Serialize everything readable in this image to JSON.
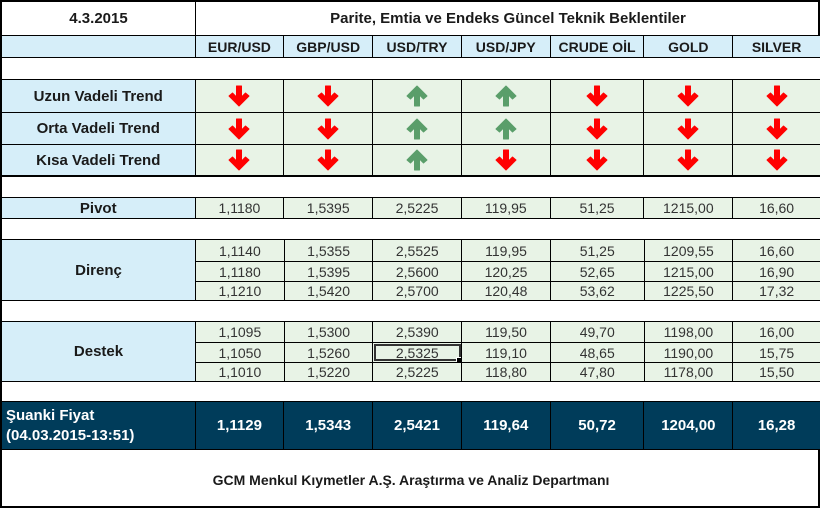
{
  "header": {
    "date": "4.3.2015",
    "title": "Parite, Emtia ve Endeks Güncel Teknik Beklentiler"
  },
  "columns": [
    "EUR/USD",
    "GBP/USD",
    "USD/TRY",
    "USD/JPY",
    "CRUDE OİL",
    "GOLD",
    "SILVER"
  ],
  "colors": {
    "header_bg": "#d6eef9",
    "value_bg": "#e8f3e6",
    "current_bg": "#003c5a",
    "arrow_down": "#ff0000",
    "arrow_up": "#5a9e6a"
  },
  "trends": [
    {
      "label": "Uzun Vadeli Trend",
      "directions": [
        "down",
        "down",
        "up",
        "up",
        "down",
        "down",
        "down"
      ]
    },
    {
      "label": "Orta Vadeli Trend",
      "directions": [
        "down",
        "down",
        "up",
        "up",
        "down",
        "down",
        "down"
      ]
    },
    {
      "label": "Kısa Vadeli Trend",
      "directions": [
        "down",
        "down",
        "up",
        "down",
        "down",
        "down",
        "down"
      ]
    }
  ],
  "pivot": {
    "label": "Pivot",
    "values": [
      "1,1180",
      "1,5395",
      "2,5225",
      "119,95",
      "51,25",
      "1215,00",
      "16,60"
    ]
  },
  "direnc": {
    "label": "Direnç",
    "rows": [
      [
        "1,1140",
        "1,5355",
        "2,5525",
        "119,95",
        "51,25",
        "1209,55",
        "16,60"
      ],
      [
        "1,1180",
        "1,5395",
        "2,5600",
        "120,25",
        "52,65",
        "1215,00",
        "16,90"
      ],
      [
        "1,1210",
        "1,5420",
        "2,5700",
        "120,48",
        "53,62",
        "1225,50",
        "17,32"
      ]
    ]
  },
  "destek": {
    "label": "Destek",
    "rows": [
      [
        "1,1095",
        "1,5300",
        "2,5390",
        "119,50",
        "49,70",
        "1198,00",
        "16,00"
      ],
      [
        "1,1050",
        "1,5260",
        "2,5325",
        "119,10",
        "48,65",
        "1190,00",
        "15,75"
      ],
      [
        "1,1010",
        "1,5220",
        "2,5225",
        "118,80",
        "47,80",
        "1178,00",
        "15,50"
      ]
    ]
  },
  "current": {
    "label_line1": "Şuanki Fiyat",
    "label_line2": "(04.03.2015-13:51)",
    "values": [
      "1,1129",
      "1,5343",
      "2,5421",
      "119,64",
      "50,72",
      "1204,00",
      "16,28"
    ]
  },
  "footer": "GCM Menkul Kıymetler A.Ş. Araştırma ve Analiz Departmanı"
}
